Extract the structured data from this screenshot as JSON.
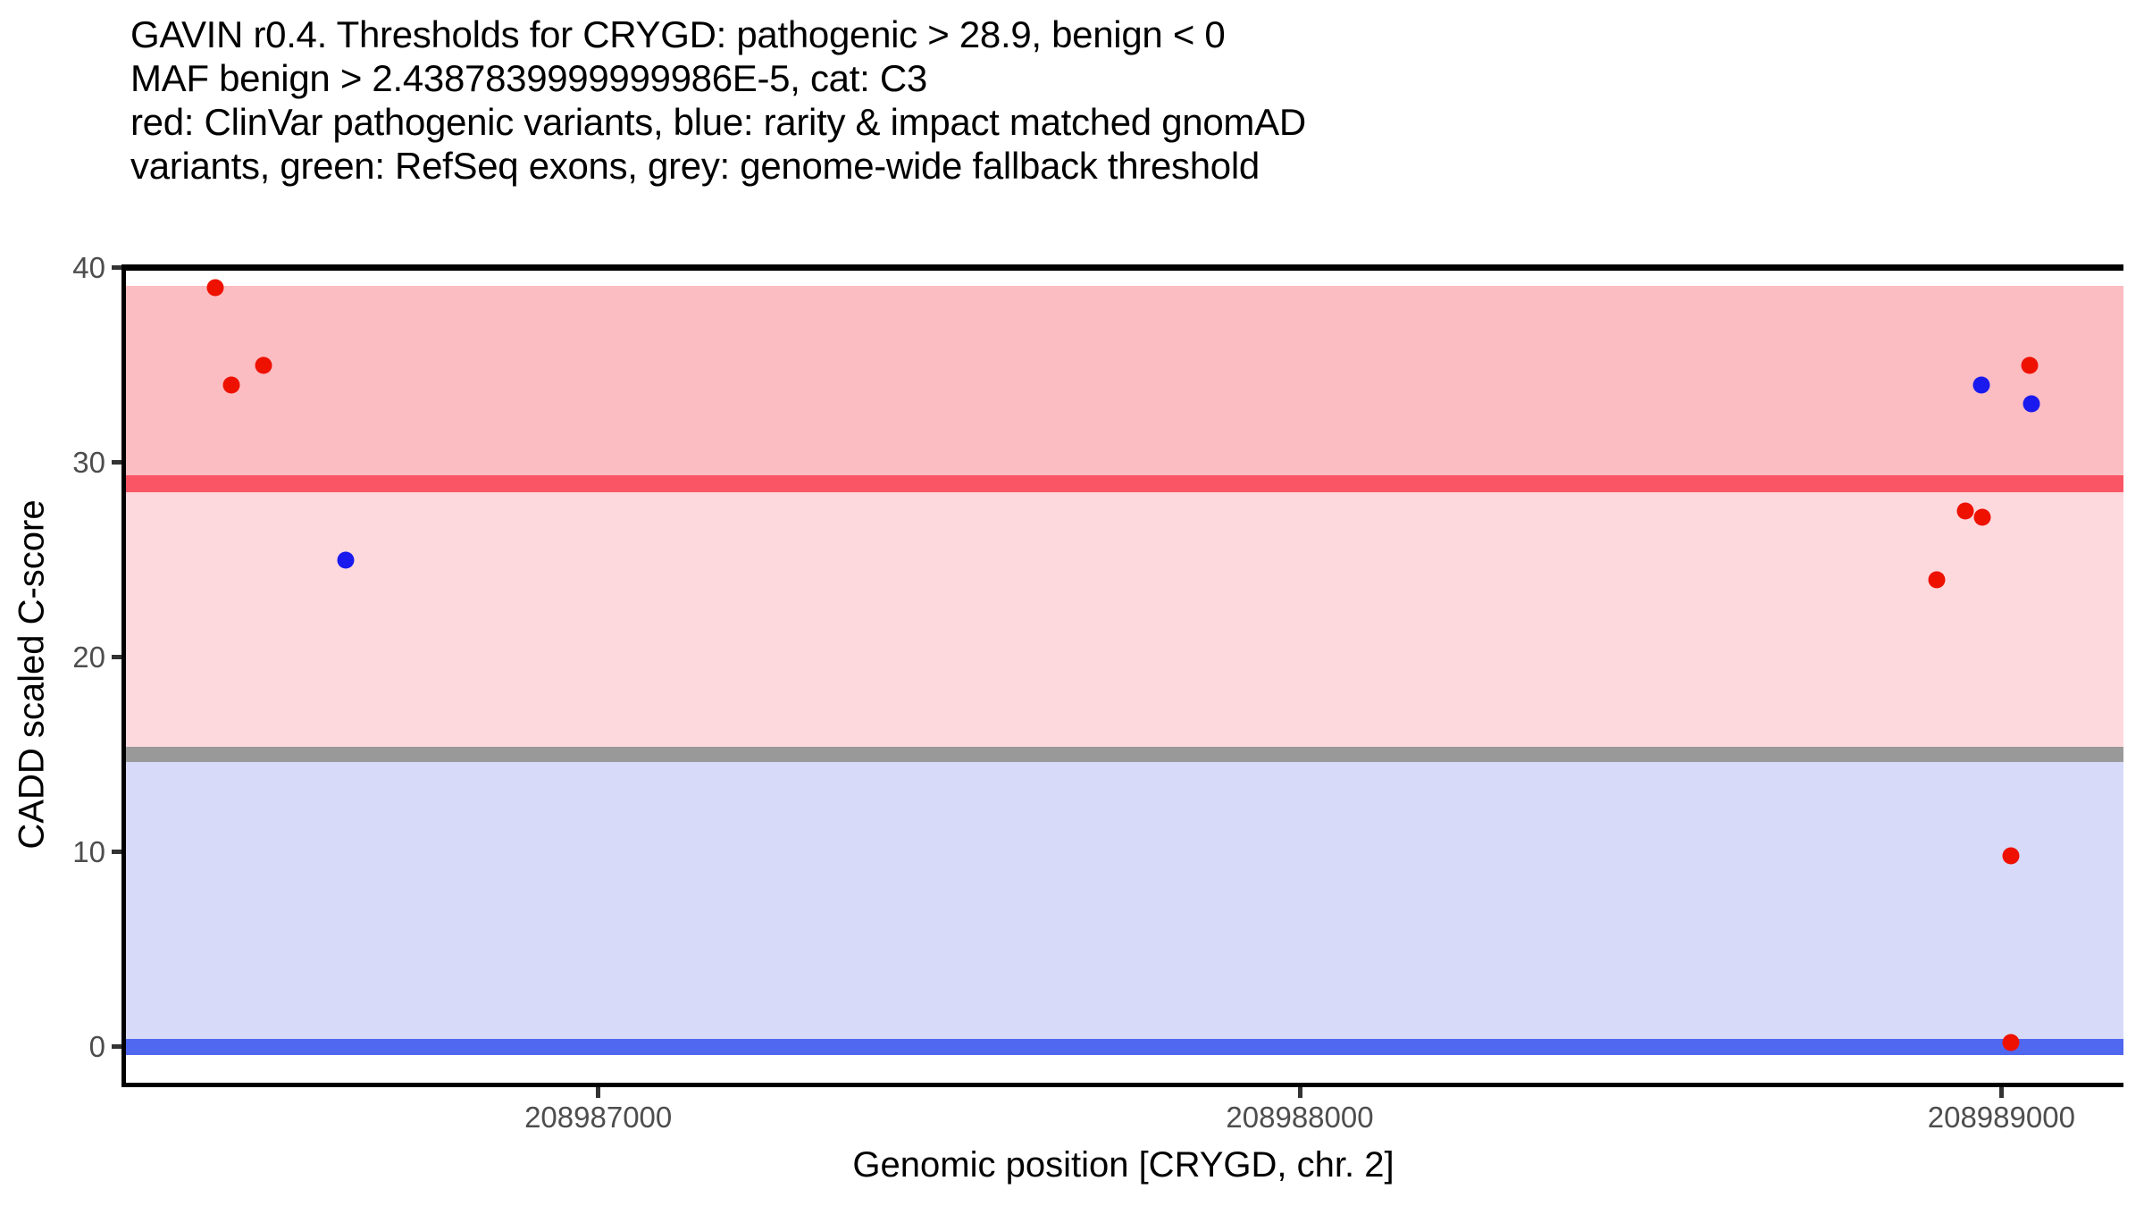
{
  "title_lines": [
    "GAVIN r0.4. Thresholds for CRYGD: pathogenic > 28.9, benign < 0",
    "MAF benign > 2.4387839999999986E-5, cat: C3",
    "red: ClinVar pathogenic variants, blue: rarity & impact matched gnomAD",
    "variants, green: RefSeq exons, grey: genome-wide fallback threshold"
  ],
  "x_axis": {
    "label": "Genomic position [CRYGD, chr. 2]",
    "ticks": [
      208987000,
      208988000,
      208989000
    ]
  },
  "y_axis": {
    "label": "CADD scaled C-score",
    "ticks": [
      0,
      10,
      20,
      30,
      40
    ]
  },
  "colors": {
    "pathogenic_band": "#FBBCC2",
    "intermediate_band": "#FDD9DE",
    "benign_band": "#D7DAF8",
    "pathogenic_line": "#FA5564",
    "fallback_line": "#999999",
    "benign_line": "#5067EF",
    "top_border_line": "#000000",
    "red_point": "#EE1100",
    "blue_point": "#1A1AEE"
  },
  "chart_data": {
    "type": "scatter",
    "title": "GAVIN r0.4. Thresholds for CRYGD: pathogenic > 28.9, benign < 0 MAF benign > 2.4387839999999986E-5, cat: C3 red: ClinVar pathogenic variants, blue: rarity & impact matched gnomAD variants, green: RefSeq exons, grey: genome-wide fallback threshold",
    "xlabel": "Genomic position [CRYGD, chr. 2]",
    "ylabel": "CADD scaled C-score",
    "xlim": [
      208986323,
      208989174
    ],
    "ylim": [
      -1.94,
      40.17
    ],
    "grid": false,
    "legend": "none",
    "thresholds": {
      "pathogenic_gt": 28.9,
      "benign_lt": 0,
      "maf_benign_gt": 2.4387839999999986e-05,
      "genome_wide_fallback": 15,
      "category": "C3"
    },
    "bands": [
      {
        "name": "pathogenic-zone",
        "from": 28.9,
        "to": 39.05,
        "color_key": "pathogenic_band"
      },
      {
        "name": "intermediate-zone",
        "from": 15,
        "to": 28.9,
        "color_key": "intermediate_band"
      },
      {
        "name": "benign-zone",
        "from": -0.43,
        "to": 15,
        "color_key": "benign_band"
      }
    ],
    "hlines": [
      {
        "name": "pathogenic-threshold-line",
        "y": 28.9,
        "thickness": 19,
        "color_key": "pathogenic_line"
      },
      {
        "name": "fallback-threshold-line",
        "y": 15,
        "thickness": 17,
        "color_key": "fallback_line"
      },
      {
        "name": "benign-threshold-line",
        "y": 0,
        "thickness": 18,
        "color_key": "benign_line"
      },
      {
        "name": "top-border-line",
        "y": 40,
        "thickness": 7,
        "color_key": "top_border_line"
      }
    ],
    "series": [
      {
        "name": "ClinVar pathogenic variants",
        "color_key": "red_point",
        "points": [
          [
            208986454,
            39.0
          ],
          [
            208986477,
            34.0
          ],
          [
            208986523,
            35.0
          ],
          [
            208988908,
            24.0
          ],
          [
            208988949,
            27.5
          ],
          [
            208988973,
            27.2
          ],
          [
            208989040,
            35.0
          ],
          [
            208989013,
            9.8
          ],
          [
            208989013,
            0.2
          ]
        ]
      },
      {
        "name": "rarity & impact matched gnomAD variants",
        "color_key": "blue_point",
        "points": [
          [
            208986640,
            25.0
          ],
          [
            208988971,
            34.0
          ],
          [
            208989043,
            33.0
          ]
        ]
      }
    ]
  }
}
